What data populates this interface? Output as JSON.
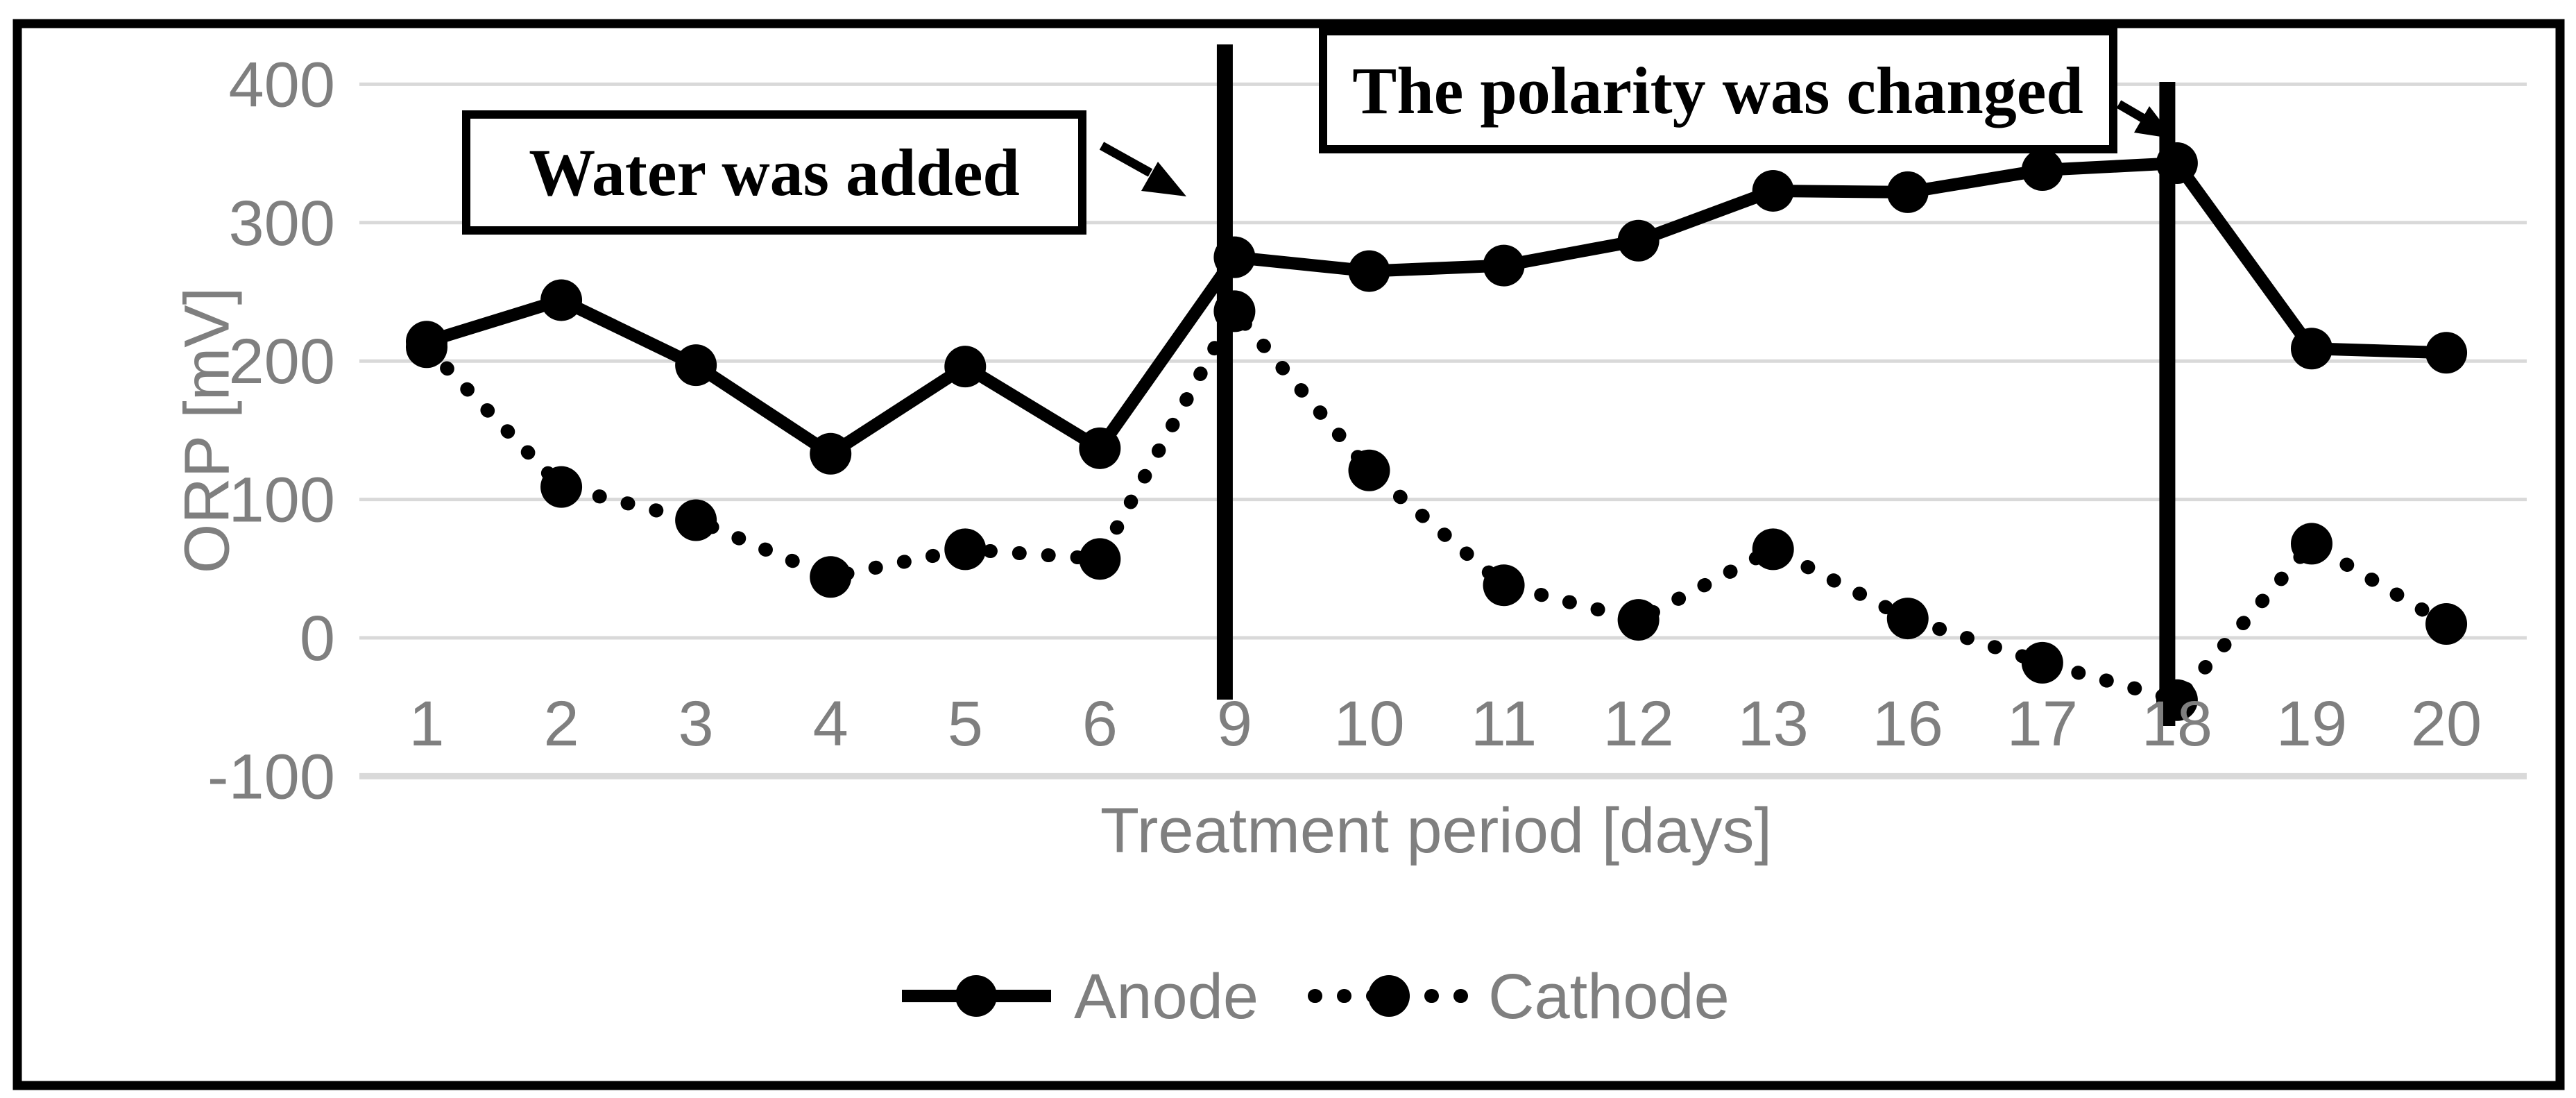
{
  "chart_data": {
    "type": "line",
    "title": "",
    "xlabel": "Treatment period [days]",
    "ylabel": "ORP [mV]",
    "categories": [
      "1",
      "2",
      "3",
      "4",
      "5",
      "6",
      "9",
      "10",
      "11",
      "12",
      "13",
      "16",
      "17",
      "18",
      "19",
      "20"
    ],
    "y_ticks": [
      "400",
      "300",
      "200",
      "100",
      "0",
      "-100"
    ],
    "ylim": [
      -100,
      400
    ],
    "grid": "horizontal-only",
    "legend_position": "bottom-center",
    "series": [
      {
        "name": "Anode",
        "line_style": "solid",
        "marker": "filled-circle",
        "values": [
          214,
          244,
          197,
          133,
          196,
          137,
          275,
          265,
          269,
          287,
          323,
          322,
          338,
          343,
          209,
          206
        ]
      },
      {
        "name": "Cathode",
        "line_style": "dotted",
        "marker": "filled-circle",
        "values": [
          210,
          109,
          85,
          44,
          64,
          57,
          236,
          121,
          38,
          13,
          64,
          14,
          -18,
          -45,
          68,
          10
        ]
      }
    ],
    "event_lines": [
      {
        "at_category": "9",
        "label": "Water was added"
      },
      {
        "at_category": "18",
        "label": "The polarity was changed"
      }
    ],
    "annotations": [
      {
        "text": "Water was added"
      },
      {
        "text": "The polarity was changed"
      }
    ]
  },
  "colors": {
    "background": "#ffffff",
    "border": "#000000",
    "gridline": "#d9d9d9",
    "axis_line": "#d3d3d3",
    "axis_text": "#7f7f7f",
    "series": "#000000",
    "annotation_box_border": "#000000",
    "annotation_box_fill": "#ffffff"
  }
}
